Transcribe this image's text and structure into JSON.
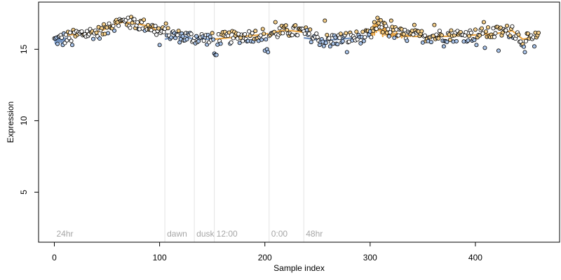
{
  "chart_data": {
    "type": "scatter",
    "title": "",
    "xlabel": "Sample index",
    "ylabel": "Expression",
    "xlim": [
      -15,
      480
    ],
    "ylim": [
      1.5,
      18.3
    ],
    "x_ticks": [
      0,
      100,
      200,
      300,
      400
    ],
    "x_tick_labels": [
      "0",
      "100",
      "200",
      "300",
      "400"
    ],
    "y_ticks": [
      5,
      10,
      15
    ],
    "y_tick_labels": [
      "5",
      "10",
      "15"
    ],
    "grid": false,
    "legend": "none",
    "n_samples": 461,
    "regions": [
      {
        "label": "24hr",
        "start": 0
      },
      {
        "label": "dawn",
        "start": 105
      },
      {
        "label": "dusk",
        "start": 133
      },
      {
        "label": "12:00",
        "start": 152
      },
      {
        "label": "0:00",
        "start": 204
      },
      {
        "label": "48hr",
        "start": 237
      }
    ],
    "region_boundaries": [
      105,
      133,
      152,
      204,
      237
    ],
    "trend_segments": [
      {
        "start": 0,
        "end": 12,
        "color": "#6c8ebf",
        "values": [
          15.9,
          15.4,
          15.9,
          15.3,
          15.9,
          15.5,
          15.8,
          15.3,
          15.9,
          15.6,
          15.8,
          15.4,
          15.8
        ]
      },
      {
        "start": 12,
        "end": 104,
        "color": "#e8a13c",
        "knots": [
          [
            12,
            16.0
          ],
          [
            30,
            16.1
          ],
          [
            45,
            16.3
          ],
          [
            55,
            16.7
          ],
          [
            65,
            16.9
          ],
          [
            78,
            16.8
          ],
          [
            90,
            16.6
          ],
          [
            104,
            16.1
          ]
        ]
      },
      {
        "start": 105,
        "end": 132,
        "color": "#6c8ebf",
        "knots": [
          [
            105,
            15.7
          ],
          [
            115,
            15.9
          ],
          [
            125,
            15.9
          ],
          [
            132,
            15.7
          ]
        ]
      },
      {
        "start": 133,
        "end": 151,
        "color": "#6c8ebf",
        "knots": [
          [
            133,
            15.8
          ],
          [
            140,
            15.7
          ],
          [
            151,
            15.7
          ]
        ]
      },
      {
        "start": 152,
        "end": 203,
        "color": "#e8a13c",
        "knots": [
          [
            152,
            15.7
          ],
          [
            165,
            15.8
          ],
          [
            180,
            15.9
          ],
          [
            195,
            16.0
          ],
          [
            203,
            16.1
          ]
        ]
      },
      {
        "start": 204,
        "end": 236,
        "color": "#e8a13c",
        "knots": [
          [
            204,
            16.1
          ],
          [
            215,
            16.3
          ],
          [
            225,
            16.3
          ],
          [
            236,
            16.2
          ]
        ]
      },
      {
        "start": 237,
        "end": 300,
        "color": "#6c8ebf",
        "knots": [
          [
            237,
            15.8
          ],
          [
            255,
            15.6
          ],
          [
            270,
            15.7
          ],
          [
            285,
            15.8
          ],
          [
            300,
            15.9
          ]
        ]
      },
      {
        "start": 300,
        "end": 340,
        "color": "#e8a13c",
        "values": [
          16.0,
          16.4,
          15.9,
          16.7,
          16.0,
          16.9,
          16.2,
          17.0,
          16.3,
          16.8,
          16.1,
          16.5,
          15.9,
          16.7,
          16.0,
          16.6,
          15.9,
          16.4,
          15.8,
          16.2,
          15.9,
          16.3,
          15.8,
          16.1,
          15.9,
          16.2,
          15.8,
          16.0,
          15.9,
          16.1,
          15.8,
          16.0,
          15.9,
          16.1,
          15.8,
          16.0,
          15.9,
          16.0,
          15.9,
          16.0,
          15.9
        ]
      },
      {
        "start": 340,
        "end": 460,
        "color": "#e8a13c",
        "knots": [
          [
            340,
            15.9
          ],
          [
            370,
            15.9
          ],
          [
            400,
            16.0
          ],
          [
            420,
            16.1
          ],
          [
            435,
            16.3
          ],
          [
            445,
            15.7
          ],
          [
            460,
            15.9
          ]
        ]
      }
    ],
    "series_trend": [
      [
        -1,
        0.0,
        15.6
      ],
      [
        28,
        0.0,
        16.1
      ],
      [
        45,
        0.0,
        16.2
      ],
      [
        55,
        0.0,
        16.7
      ],
      [
        65,
        0.0,
        16.9
      ],
      [
        78,
        0.0,
        16.8
      ],
      [
        90,
        0.0,
        16.6
      ],
      [
        104,
        0.0,
        16.1
      ],
      [
        120,
        0.0,
        15.9
      ],
      [
        151,
        0.0,
        15.7
      ],
      [
        180,
        0.0,
        15.9
      ],
      [
        203,
        0.0,
        16.1
      ],
      [
        225,
        0.0,
        16.3
      ],
      [
        236,
        0.0,
        16.2
      ],
      [
        255,
        0.0,
        15.6
      ],
      [
        280,
        0.0,
        15.8
      ],
      [
        300,
        0.0,
        15.9
      ],
      [
        310,
        0.0,
        16.6
      ],
      [
        320,
        0.0,
        16.2
      ],
      [
        340,
        0.0,
        15.9
      ],
      [
        400,
        0.0,
        16.0
      ],
      [
        435,
        0.0,
        16.3
      ],
      [
        445,
        0.0,
        15.6
      ],
      [
        460,
        0.0,
        15.8
      ]
    ],
    "point_noise": 0.45,
    "marker_colors": {
      "blue": "#a9c4ea",
      "orange": "#f5cf8a",
      "black": "#000000"
    },
    "low_points": [
      [
        8,
        15.3
      ],
      [
        17,
        15.3
      ],
      [
        100,
        15.3
      ],
      [
        152,
        14.7
      ],
      [
        153,
        14.6
      ],
      [
        154,
        14.6
      ],
      [
        200,
        14.9
      ],
      [
        202,
        15.0
      ],
      [
        203,
        14.8
      ],
      [
        262,
        15.2
      ],
      [
        278,
        14.8
      ],
      [
        370,
        15.2
      ],
      [
        401,
        15.3
      ],
      [
        409,
        15.1
      ],
      [
        422,
        14.9
      ],
      [
        447,
        14.8
      ],
      [
        456,
        15.2
      ]
    ],
    "high_points": [
      [
        52,
        16.8
      ],
      [
        62,
        17.1
      ],
      [
        70,
        17.2
      ],
      [
        76,
        17.1
      ],
      [
        106,
        16.8
      ],
      [
        210,
        16.9
      ],
      [
        257,
        17.0
      ],
      [
        304,
        16.9
      ],
      [
        307,
        17.2
      ],
      [
        314,
        16.8
      ],
      [
        320,
        17.0
      ],
      [
        342,
        16.7
      ],
      [
        361,
        16.7
      ],
      [
        408,
        16.9
      ],
      [
        435,
        16.6
      ]
    ]
  }
}
